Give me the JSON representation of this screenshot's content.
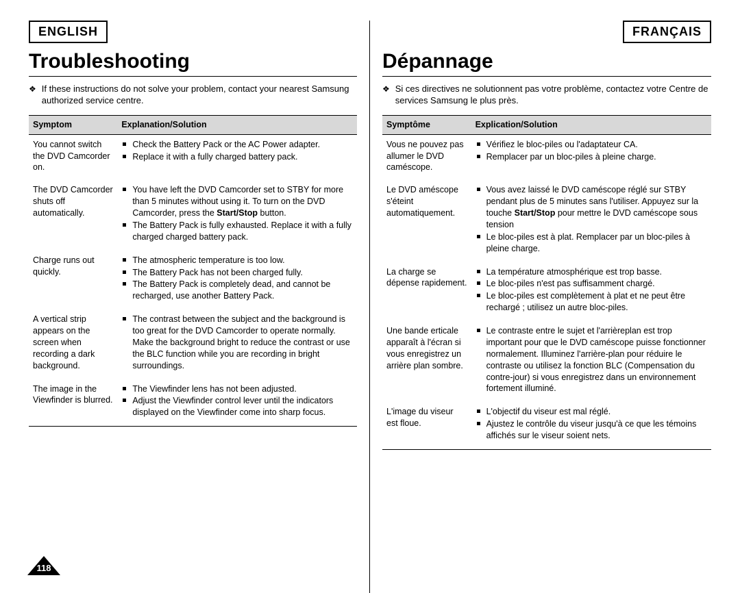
{
  "page_number": "118",
  "left": {
    "lang": "ENGLISH",
    "title": "Troubleshooting",
    "intro": "If these instructions do not solve your problem, contact your nearest Samsung authorized service centre.",
    "th_symptom": "Symptom",
    "th_solution": "Explanation/Solution",
    "rows": [
      {
        "symptom": "You cannot switch the DVD Camcorder on.",
        "items": [
          "Check the Battery Pack or the AC Power adapter.",
          "Replace it with a fully charged battery pack."
        ]
      },
      {
        "symptom": "The DVD Camcorder shuts off automatically.",
        "items": [
          "You have left the DVD Camcorder set to STBY for more than 5 minutes without using it. To turn on the DVD Camcorder, press the <b>Start/Stop</b> button.",
          "The Battery Pack is fully exhausted. Replace it with a fully charged charged battery pack."
        ]
      },
      {
        "symptom": "Charge runs out quickly.",
        "items": [
          "The atmospheric temperature is too low.",
          "The Battery Pack has not been charged fully.",
          "The Battery Pack is completely dead, and cannot be recharged, use another Battery Pack."
        ]
      },
      {
        "symptom": "A vertical strip appears on the screen when recording a dark background.",
        "items": [
          "The contrast between the subject and the background is too great for the DVD Camcorder to operate normally. Make the background bright to reduce the contrast or use the BLC function while you are recording in bright surroundings."
        ]
      },
      {
        "symptom": "The image in the Viewfinder is blurred.",
        "items": [
          "The Viewfinder lens has not been adjusted.",
          "Adjust the Viewfinder control lever until the indicators displayed on the Viewfinder come into sharp focus."
        ]
      }
    ]
  },
  "right": {
    "lang": "FRANÇAIS",
    "title": "Dépannage",
    "intro": "Si ces directives ne solutionnent pas votre problème, contactez votre Centre de services Samsung le plus près.",
    "th_symptom": "Symptôme",
    "th_solution": "Explication/Solution",
    "rows": [
      {
        "symptom": "Vous ne pouvez pas allumer le DVD caméscope.",
        "items": [
          "Vérifiez le bloc-piles ou l'adaptateur CA.",
          "Remplacer par un bloc-piles à pleine charge."
        ]
      },
      {
        "symptom": "Le DVD améscope s'éteint automatiquement.",
        "items": [
          "Vous avez laissé le DVD caméscope réglé sur STBY pendant plus de 5 minutes sans l'utiliser. Appuyez sur la touche <b>Start/Stop</b> pour mettre le DVD caméscope sous tension",
          "Le bloc-piles est à plat. Remplacer par un bloc-piles à pleine charge."
        ]
      },
      {
        "symptom": "La charge se dépense rapidement.",
        "items": [
          "La température atmosphérique est trop basse.",
          "Le bloc-piles n'est pas suffisamment chargé.",
          "Le bloc-piles est complètement à plat et ne peut être rechargé ; utilisez un autre bloc-piles."
        ]
      },
      {
        "symptom": "Une bande erticale apparaît à l'écran si vous enregistrez un arrière plan sombre.",
        "items": [
          "Le contraste entre le sujet et l'arrièreplan est trop important pour que le DVD caméscope puisse fonctionner normalement. Illuminez l'arrière-plan pour réduire le contraste ou utilisez la fonction BLC (Compensation du contre-jour) si vous enregistrez dans un environnement fortement illuminé."
        ]
      },
      {
        "symptom": "L'image du viseur est floue.",
        "items": [
          "L'objectif du viseur est mal réglé.",
          "Ajustez le contrôle du viseur jusqu'à ce que les témoins affichés sur le viseur soient nets."
        ]
      }
    ]
  }
}
